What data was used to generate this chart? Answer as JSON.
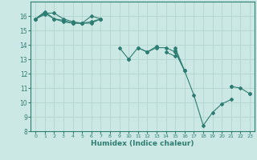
{
  "xlabel": "Humidex (Indice chaleur)",
  "ylabel": "",
  "bg_color": "#cce8e4",
  "grid_color": "#aed0cc",
  "line_color": "#2e7d72",
  "xlim": [
    -0.5,
    23.5
  ],
  "ylim": [
    8,
    17
  ],
  "xticks": [
    0,
    1,
    2,
    3,
    4,
    5,
    6,
    7,
    8,
    9,
    10,
    11,
    12,
    13,
    14,
    15,
    16,
    17,
    18,
    19,
    20,
    21,
    22,
    23
  ],
  "yticks": [
    8,
    9,
    10,
    11,
    12,
    13,
    14,
    15,
    16
  ],
  "series": [
    [
      15.8,
      16.3,
      15.8,
      15.7,
      15.5,
      15.5,
      16.0,
      15.8,
      null,
      null,
      13.0,
      13.8,
      13.5,
      13.8,
      13.8,
      13.5,
      12.2,
      null,
      null,
      null,
      null,
      11.1,
      11.0,
      10.6
    ],
    [
      15.8,
      16.2,
      16.2,
      15.8,
      15.6,
      15.5,
      15.5,
      15.8,
      null,
      13.8,
      13.0,
      null,
      null,
      null,
      13.5,
      13.2,
      null,
      null,
      null,
      null,
      null,
      null,
      null,
      null
    ],
    [
      15.8,
      16.1,
      null,
      null,
      null,
      null,
      null,
      null,
      null,
      null,
      null,
      null,
      null,
      null,
      null,
      13.8,
      12.2,
      10.5,
      8.4,
      9.3,
      9.9,
      10.2,
      null,
      null
    ],
    [
      15.8,
      16.2,
      15.8,
      15.6,
      15.5,
      15.5,
      15.6,
      15.8,
      null,
      null,
      null,
      13.8,
      13.5,
      13.9,
      null,
      13.6,
      12.2,
      null,
      null,
      null,
      null,
      11.1,
      null,
      10.6
    ]
  ]
}
